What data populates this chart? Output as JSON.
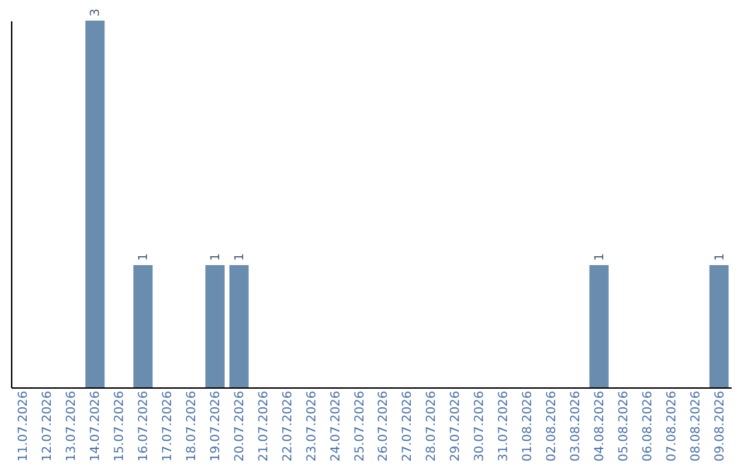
{
  "chart_data": {
    "type": "bar",
    "categories": [
      "11.07.2026",
      "12.07.2026",
      "13.07.2026",
      "14.07.2026",
      "15.07.2026",
      "16.07.2026",
      "17.07.2026",
      "18.07.2026",
      "19.07.2026",
      "20.07.2026",
      "21.07.2026",
      "22.07.2026",
      "23.07.2026",
      "24.07.2026",
      "25.07.2026",
      "26.07.2026",
      "27.07.2026",
      "28.07.2026",
      "29.07.2026",
      "30.07.2026",
      "31.07.2026",
      "01.08.2026",
      "02.08.2026",
      "03.08.2026",
      "04.08.2026",
      "05.08.2026",
      "06.08.2026",
      "07.08.2026",
      "08.08.2026",
      "09.08.2026"
    ],
    "values": [
      0,
      0,
      0,
      3,
      0,
      1,
      0,
      0,
      1,
      1,
      0,
      0,
      0,
      0,
      0,
      0,
      0,
      0,
      0,
      0,
      0,
      0,
      0,
      0,
      1,
      0,
      0,
      0,
      0,
      1
    ],
    "value_labels": [
      null,
      null,
      null,
      "3",
      null,
      "1",
      null,
      null,
      "1",
      "1",
      null,
      null,
      null,
      null,
      null,
      null,
      null,
      null,
      null,
      null,
      null,
      null,
      null,
      null,
      "1",
      null,
      null,
      null,
      null,
      "1"
    ],
    "color": "#6a8caf",
    "tick_labels": "x",
    "grid": false
  }
}
